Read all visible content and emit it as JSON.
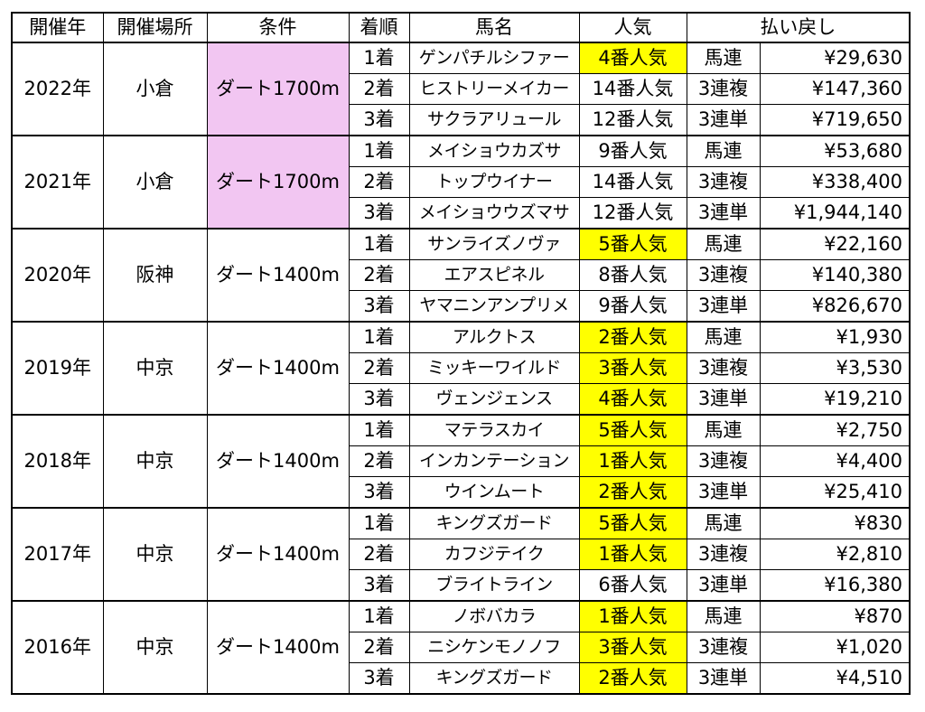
{
  "headers": [
    "開催年",
    "開催場所",
    "条件",
    "着順",
    "馬名",
    "人気",
    "払い戻し"
  ],
  "colors": {
    "popularity_highlight": "#ffff00",
    "condition_highlight": "#f2c6f2"
  },
  "years": [
    {
      "year": "2022年",
      "venue": "小倉",
      "condition": "ダート1700m",
      "condition_highlight": true,
      "rows": [
        {
          "place": "1着",
          "horse": "ゲンパチルシファー",
          "pop": "4番人気",
          "pop_highlight": true,
          "bet": "馬連",
          "payout": "¥29,630"
        },
        {
          "place": "2着",
          "horse": "ヒストリーメイカー",
          "pop": "14番人気",
          "pop_highlight": false,
          "bet": "3連複",
          "payout": "¥147,360"
        },
        {
          "place": "3着",
          "horse": "サクラアリュール",
          "pop": "12番人気",
          "pop_highlight": false,
          "bet": "3連単",
          "payout": "¥719,650"
        }
      ]
    },
    {
      "year": "2021年",
      "venue": "小倉",
      "condition": "ダート1700m",
      "condition_highlight": true,
      "rows": [
        {
          "place": "1着",
          "horse": "メイショウカズサ",
          "pop": "9番人気",
          "pop_highlight": false,
          "bet": "馬連",
          "payout": "¥53,680"
        },
        {
          "place": "2着",
          "horse": "トップウイナー",
          "pop": "14番人気",
          "pop_highlight": false,
          "bet": "3連複",
          "payout": "¥338,400"
        },
        {
          "place": "3着",
          "horse": "メイショウウズマサ",
          "pop": "12番人気",
          "pop_highlight": false,
          "bet": "3連単",
          "payout": "¥1,944,140"
        }
      ]
    },
    {
      "year": "2020年",
      "venue": "阪神",
      "condition": "ダート1400m",
      "condition_highlight": false,
      "rows": [
        {
          "place": "1着",
          "horse": "サンライズノヴァ",
          "pop": "5番人気",
          "pop_highlight": true,
          "bet": "馬連",
          "payout": "¥22,160"
        },
        {
          "place": "2着",
          "horse": "エアスピネル",
          "pop": "8番人気",
          "pop_highlight": false,
          "bet": "3連複",
          "payout": "¥140,380"
        },
        {
          "place": "3着",
          "horse": "ヤマニンアンプリメ",
          "pop": "9番人気",
          "pop_highlight": false,
          "bet": "3連単",
          "payout": "¥826,670"
        }
      ]
    },
    {
      "year": "2019年",
      "venue": "中京",
      "condition": "ダート1400m",
      "condition_highlight": false,
      "rows": [
        {
          "place": "1着",
          "horse": "アルクトス",
          "pop": "2番人気",
          "pop_highlight": true,
          "bet": "馬連",
          "payout": "¥1,930"
        },
        {
          "place": "2着",
          "horse": "ミッキーワイルド",
          "pop": "3番人気",
          "pop_highlight": true,
          "bet": "3連複",
          "payout": "¥3,530"
        },
        {
          "place": "3着",
          "horse": "ヴェンジェンス",
          "pop": "4番人気",
          "pop_highlight": true,
          "bet": "3連単",
          "payout": "¥19,210"
        }
      ]
    },
    {
      "year": "2018年",
      "venue": "中京",
      "condition": "ダート1400m",
      "condition_highlight": false,
      "rows": [
        {
          "place": "1着",
          "horse": "マテラスカイ",
          "pop": "5番人気",
          "pop_highlight": true,
          "bet": "馬連",
          "payout": "¥2,750"
        },
        {
          "place": "2着",
          "horse": "インカンテーション",
          "pop": "1番人気",
          "pop_highlight": true,
          "bet": "3連複",
          "payout": "¥4,400"
        },
        {
          "place": "3着",
          "horse": "ウインムート",
          "pop": "2番人気",
          "pop_highlight": true,
          "bet": "3連単",
          "payout": "¥25,410"
        }
      ]
    },
    {
      "year": "2017年",
      "venue": "中京",
      "condition": "ダート1400m",
      "condition_highlight": false,
      "rows": [
        {
          "place": "1着",
          "horse": "キングズガード",
          "pop": "5番人気",
          "pop_highlight": true,
          "bet": "馬連",
          "payout": "¥830"
        },
        {
          "place": "2着",
          "horse": "カフジテイク",
          "pop": "1番人気",
          "pop_highlight": true,
          "bet": "3連複",
          "payout": "¥2,810"
        },
        {
          "place": "3着",
          "horse": "ブライトライン",
          "pop": "6番人気",
          "pop_highlight": false,
          "bet": "3連単",
          "payout": "¥16,380"
        }
      ]
    },
    {
      "year": "2016年",
      "venue": "中京",
      "condition": "ダート1400m",
      "condition_highlight": false,
      "rows": [
        {
          "place": "1着",
          "horse": "ノボバカラ",
          "pop": "1番人気",
          "pop_highlight": true,
          "bet": "馬連",
          "payout": "¥870"
        },
        {
          "place": "2着",
          "horse": "ニシケンモノノフ",
          "pop": "3番人気",
          "pop_highlight": true,
          "bet": "3連複",
          "payout": "¥1,020"
        },
        {
          "place": "3着",
          "horse": "キングズガード",
          "pop": "2番人気",
          "pop_highlight": true,
          "bet": "3連単",
          "payout": "¥4,510"
        }
      ]
    }
  ]
}
